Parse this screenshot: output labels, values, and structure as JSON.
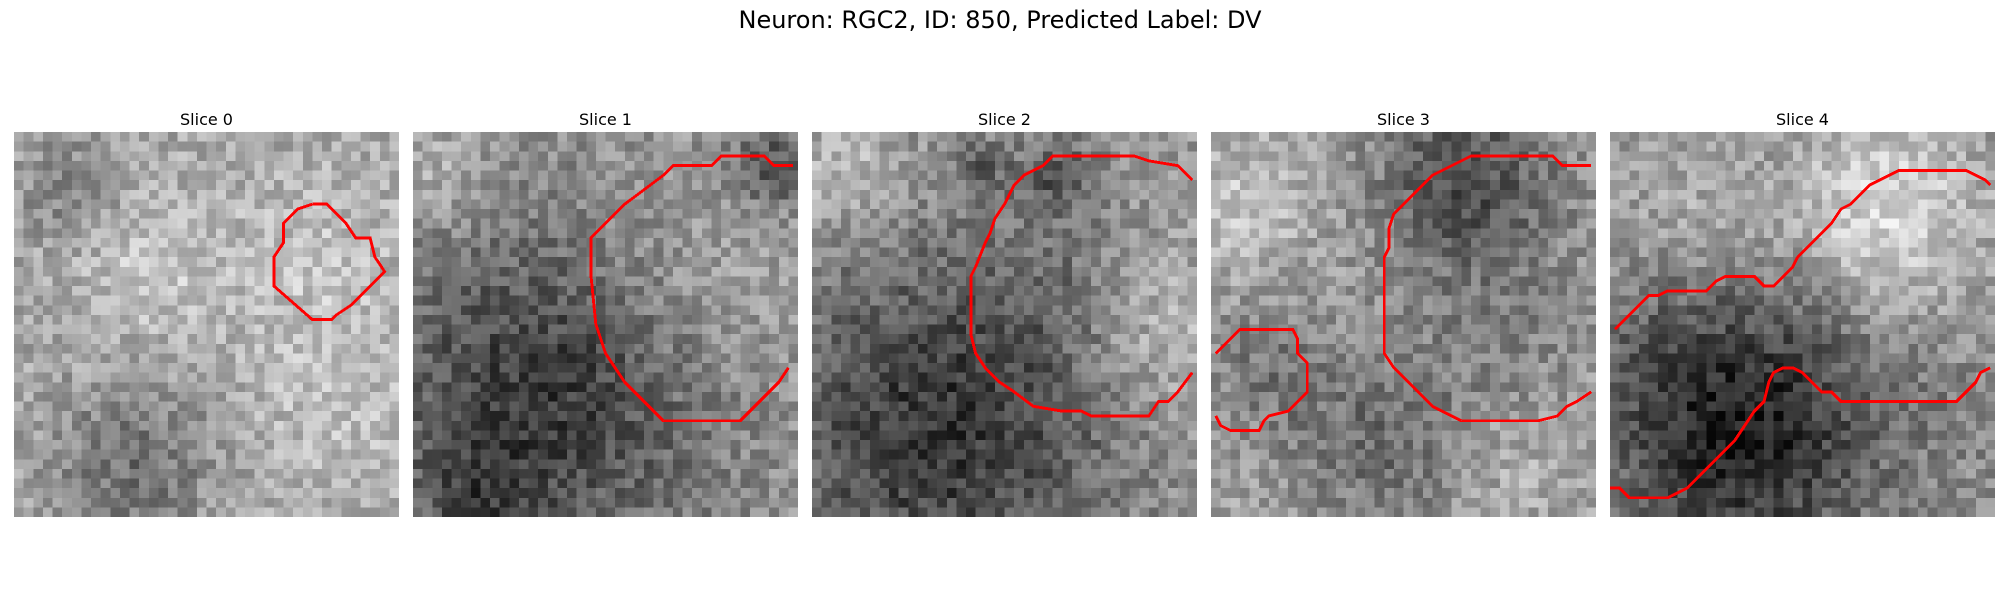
{
  "figure": {
    "title": "Neuron: RGC2, ID: 850, Predicted Label: DV"
  },
  "slices": [
    {
      "title": "Slice 0"
    },
    {
      "title": "Slice 1"
    },
    {
      "title": "Slice 2"
    },
    {
      "title": "Slice 3"
    },
    {
      "title": "Slice 4"
    }
  ],
  "colors": {
    "contour": "#ff0000",
    "colormap": "grayscale"
  }
}
